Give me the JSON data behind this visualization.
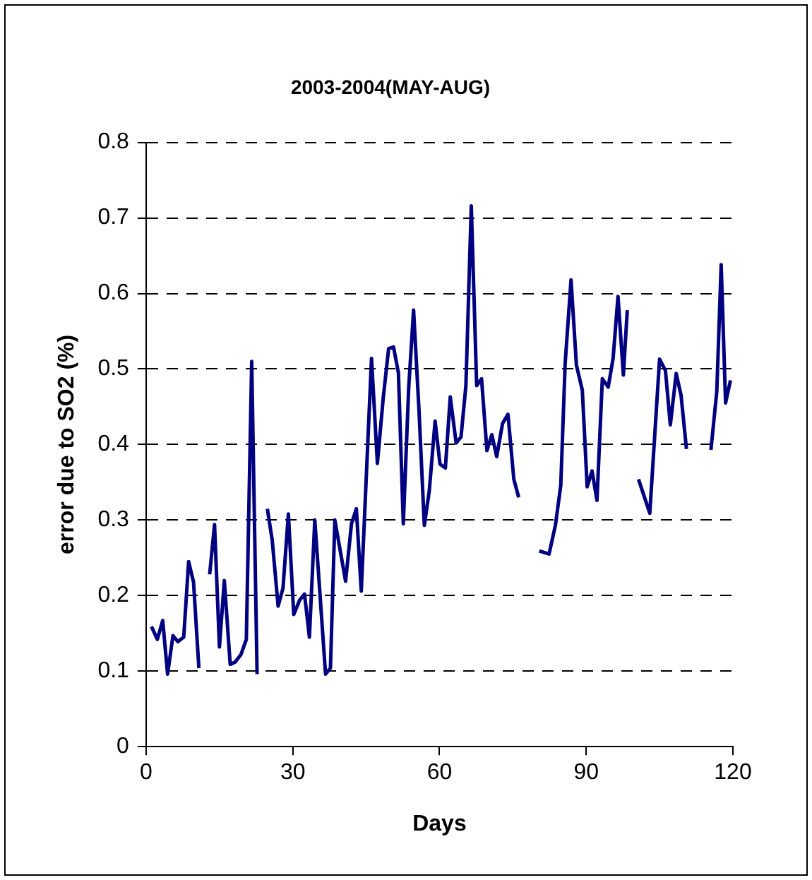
{
  "chart_data": {
    "type": "line",
    "title": "2003-2004(MAY-AUG)",
    "xlabel": "Days",
    "ylabel": "error due to SO2 (%)",
    "x": [
      1.1,
      2.3,
      3.4,
      4.4,
      5.5,
      6.5,
      7.7,
      8.7,
      9.7,
      10.8,
      12,
      13,
      14,
      15,
      16,
      17.2,
      18.2,
      19.4,
      20.5,
      21.6,
      22.7,
      23.8,
      24.8,
      25.8,
      27,
      28,
      29.1,
      30.2,
      31.4,
      32.4,
      33.4,
      34.5,
      36.7,
      37.7,
      38.6,
      40.8,
      42,
      43,
      44,
      46.1,
      47.3,
      48.5,
      49.6,
      50.6,
      51.6,
      52.6,
      53.7,
      54.7,
      55.8,
      56.9,
      57.9,
      59.1,
      60.1,
      61.2,
      62.2,
      63.4,
      64.4,
      65.4,
      66.5,
      67.6,
      68.6,
      69.7,
      70.7,
      71.7,
      72.9,
      74,
      75.2,
      76.2,
      78,
      80.4,
      82.4,
      83.7,
      84.8,
      85.7,
      86.9,
      88,
      89.2,
      90.2,
      91.2,
      92.2,
      93.3,
      94.5,
      95.5,
      96.5,
      97.6,
      98.4,
      99.5,
      100.7,
      103,
      105,
      106.2,
      107.2,
      108.4,
      109.4,
      110.5,
      113,
      115.5,
      116.7,
      117.6,
      118.5,
      119.5
    ],
    "values": [
      0.159,
      0.142,
      0.167,
      0.096,
      0.147,
      0.139,
      0.145,
      0.245,
      0.218,
      0.104,
      null,
      0.228,
      0.294,
      0.132,
      0.22,
      0.109,
      0.112,
      0.122,
      0.142,
      0.51,
      0.096,
      null,
      0.315,
      0.273,
      0.186,
      0.21,
      0.308,
      0.175,
      0.194,
      0.202,
      0.145,
      0.3,
      0.096,
      0.104,
      0.3,
      0.219,
      0.295,
      0.315,
      0.206,
      0.514,
      0.375,
      0.462,
      0.527,
      0.529,
      0.495,
      0.295,
      0.475,
      0.578,
      0.446,
      0.293,
      0.338,
      0.431,
      0.374,
      0.369,
      0.463,
      0.402,
      0.41,
      0.478,
      0.716,
      0.478,
      0.487,
      0.392,
      0.413,
      0.384,
      0.428,
      0.44,
      0.354,
      0.33,
      null,
      0.259,
      0.255,
      0.293,
      0.346,
      0.508,
      0.618,
      0.505,
      0.472,
      0.344,
      0.365,
      0.326,
      0.487,
      0.476,
      0.514,
      0.596,
      0.492,
      0.578,
      null,
      0.354,
      0.309,
      0.513,
      0.498,
      0.426,
      0.494,
      0.465,
      0.394,
      null,
      0.393,
      0.47,
      0.638,
      0.455,
      0.485
    ],
    "color": "#000080",
    "xlim": [
      0,
      120
    ],
    "xticks": [
      0,
      30,
      60,
      90,
      120
    ],
    "ylim": [
      0,
      0.8
    ],
    "yticks": [
      0,
      0.1,
      0.2,
      0.3,
      0.4,
      0.5,
      0.6,
      0.7,
      0.8
    ],
    "grid": "y",
    "legend": false,
    "marker": "none",
    "line_style": "solid"
  }
}
